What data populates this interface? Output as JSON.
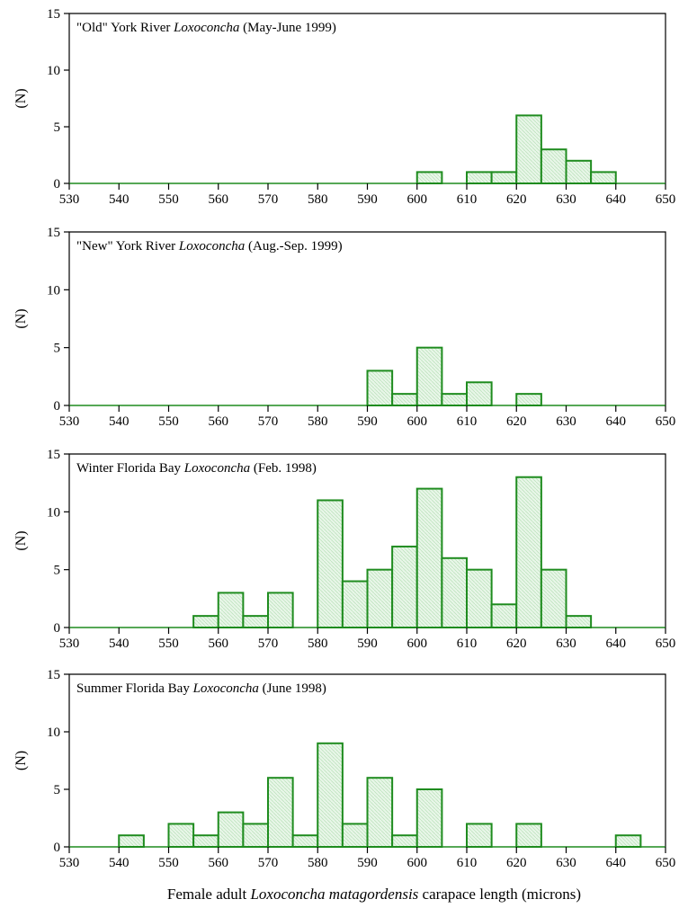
{
  "colors": {
    "bar_stroke": "#1f8c1f",
    "bar_fill": "#e2f3e2",
    "axis": "#000000"
  },
  "figure": {
    "xlabel_parts": [
      "Female adult ",
      "Loxoconcha matagordensis",
      " carapace length (microns)"
    ]
  },
  "chart_data": [
    {
      "type": "bar",
      "title_parts": [
        "\"Old\" York River ",
        "Loxoconcha",
        " (May-June 1999)"
      ],
      "ylabel": "(N)",
      "xlabel": "",
      "xlim": [
        530,
        650
      ],
      "ylim": [
        0,
        15
      ],
      "xticks": [
        530,
        540,
        550,
        560,
        570,
        580,
        590,
        600,
        610,
        620,
        630,
        640,
        650
      ],
      "yticks": [
        0,
        5,
        10,
        15
      ],
      "bin_width": 5,
      "bins": [
        {
          "x": 600,
          "n": 1
        },
        {
          "x": 610,
          "n": 1
        },
        {
          "x": 615,
          "n": 1
        },
        {
          "x": 620,
          "n": 6
        },
        {
          "x": 625,
          "n": 3
        },
        {
          "x": 630,
          "n": 2
        },
        {
          "x": 635,
          "n": 1
        }
      ]
    },
    {
      "type": "bar",
      "title_parts": [
        "\"New\" York River ",
        "Loxoconcha",
        " (Aug.-Sep. 1999)"
      ],
      "ylabel": "(N)",
      "xlabel": "",
      "xlim": [
        530,
        650
      ],
      "ylim": [
        0,
        15
      ],
      "xticks": [
        530,
        540,
        550,
        560,
        570,
        580,
        590,
        600,
        610,
        620,
        630,
        640,
        650
      ],
      "yticks": [
        0,
        5,
        10,
        15
      ],
      "bin_width": 5,
      "bins": [
        {
          "x": 590,
          "n": 3
        },
        {
          "x": 595,
          "n": 1
        },
        {
          "x": 600,
          "n": 5
        },
        {
          "x": 605,
          "n": 1
        },
        {
          "x": 610,
          "n": 2
        },
        {
          "x": 620,
          "n": 1
        }
      ]
    },
    {
      "type": "bar",
      "title_parts": [
        "Winter Florida Bay ",
        "Loxoconcha",
        " (Feb. 1998)"
      ],
      "ylabel": "(N)",
      "xlabel": "",
      "xlim": [
        530,
        650
      ],
      "ylim": [
        0,
        15
      ],
      "xticks": [
        530,
        540,
        550,
        560,
        570,
        580,
        590,
        600,
        610,
        620,
        630,
        640,
        650
      ],
      "yticks": [
        0,
        5,
        10,
        15
      ],
      "bin_width": 5,
      "bins": [
        {
          "x": 555,
          "n": 1
        },
        {
          "x": 560,
          "n": 3
        },
        {
          "x": 565,
          "n": 1
        },
        {
          "x": 570,
          "n": 3
        },
        {
          "x": 580,
          "n": 11
        },
        {
          "x": 585,
          "n": 4
        },
        {
          "x": 590,
          "n": 5
        },
        {
          "x": 595,
          "n": 7
        },
        {
          "x": 600,
          "n": 12
        },
        {
          "x": 605,
          "n": 6
        },
        {
          "x": 610,
          "n": 5
        },
        {
          "x": 615,
          "n": 2
        },
        {
          "x": 620,
          "n": 13
        },
        {
          "x": 625,
          "n": 5
        },
        {
          "x": 630,
          "n": 1
        }
      ]
    },
    {
      "type": "bar",
      "title_parts": [
        "Summer Florida Bay ",
        "Loxoconcha",
        " (June 1998)"
      ],
      "ylabel": "(N)",
      "xlabel": "Female adult Loxoconcha matagordensis carapace length (microns)",
      "xlim": [
        530,
        650
      ],
      "ylim": [
        0,
        15
      ],
      "xticks": [
        530,
        540,
        550,
        560,
        570,
        580,
        590,
        600,
        610,
        620,
        630,
        640,
        650
      ],
      "yticks": [
        0,
        5,
        10,
        15
      ],
      "bin_width": 5,
      "bins": [
        {
          "x": 540,
          "n": 1
        },
        {
          "x": 550,
          "n": 2
        },
        {
          "x": 555,
          "n": 1
        },
        {
          "x": 560,
          "n": 3
        },
        {
          "x": 565,
          "n": 2
        },
        {
          "x": 570,
          "n": 6
        },
        {
          "x": 575,
          "n": 1
        },
        {
          "x": 580,
          "n": 9
        },
        {
          "x": 585,
          "n": 2
        },
        {
          "x": 590,
          "n": 6
        },
        {
          "x": 595,
          "n": 1
        },
        {
          "x": 600,
          "n": 5
        },
        {
          "x": 610,
          "n": 2
        },
        {
          "x": 620,
          "n": 2
        },
        {
          "x": 640,
          "n": 1
        }
      ]
    }
  ]
}
